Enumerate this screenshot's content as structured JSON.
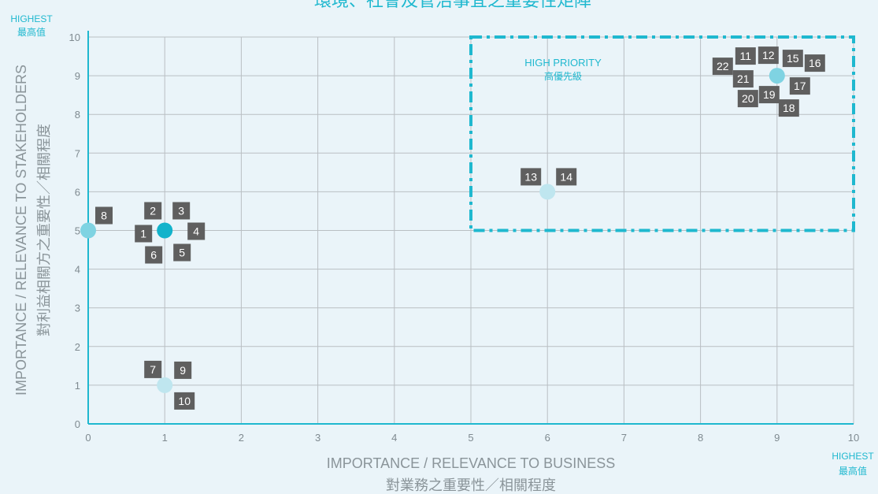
{
  "title": "環境、社會及管治事宜之重要性矩陣",
  "corner_labels": {
    "y_high": "HIGHEST",
    "y_high_zh": "最高值",
    "x_high": "HIGHEST",
    "x_high_zh": "最高值"
  },
  "high_priority": {
    "label": "HIGH PRIORITY",
    "label_zh": "高優先級"
  },
  "colors": {
    "accent": "#1fb8cf",
    "point_dark": "#12b3cb",
    "point_mid": "#7fd3e2",
    "point_light": "#bfe6ef",
    "label_box": "#5f5f5f",
    "grid": "#b9bfc3",
    "background": "#eaf4f9"
  },
  "chart_data": {
    "type": "scatter",
    "xlabel": "IMPORTANCE / RELEVANCE TO BUSINESS",
    "xlabel_zh": "對業務之重要性／相關程度",
    "ylabel": "IMPORTANCE / RELEVANCE TO STAKEHOLDERS",
    "ylabel_zh": "對利益相關方之重要性／相關程度",
    "xlim": [
      0,
      10
    ],
    "ylim": [
      0,
      10
    ],
    "x_ticks": [
      "0",
      "1",
      "2",
      "3",
      "4",
      "5",
      "6",
      "7",
      "8",
      "9",
      "10"
    ],
    "y_ticks": [
      "0",
      "1",
      "2",
      "3",
      "4",
      "5",
      "6",
      "7",
      "8",
      "9",
      "10"
    ],
    "grid": true,
    "highlight_region": {
      "x": [
        5,
        10
      ],
      "y": [
        5,
        10
      ]
    },
    "points": [
      {
        "x": 9,
        "y": 9,
        "shade": "mid",
        "issues": [
          "11",
          "12",
          "15",
          "16",
          "17",
          "18",
          "19",
          "20",
          "21",
          "22"
        ]
      },
      {
        "x": 1,
        "y": 5,
        "shade": "dark",
        "issues": [
          "1",
          "2",
          "3",
          "4",
          "5",
          "6"
        ]
      },
      {
        "x": 0,
        "y": 5,
        "shade": "mid",
        "issues": [
          "8"
        ]
      },
      {
        "x": 6,
        "y": 6,
        "shade": "light",
        "issues": [
          "13",
          "14"
        ]
      },
      {
        "x": 1,
        "y": 1,
        "shade": "light",
        "issues": [
          "7",
          "9",
          "10"
        ]
      }
    ]
  }
}
